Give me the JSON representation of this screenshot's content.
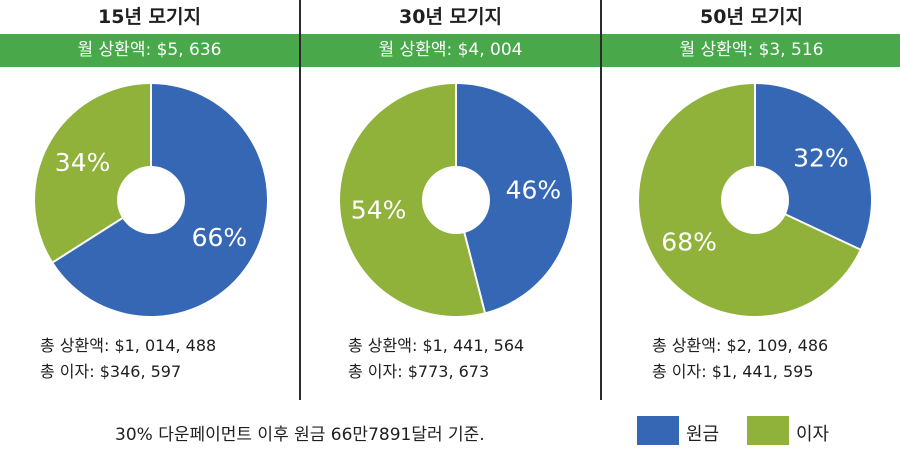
{
  "colors": {
    "principal": "#3567b5",
    "interest": "#90b23b",
    "bar": "#48a84a",
    "divider": "#2b2b2b"
  },
  "panels": [
    {
      "title": "15년 모기지",
      "monthly": "월 상환액: $5, 636",
      "total": "총 상환액: $1, 014, 488",
      "interest_total": "총 이자: $346, 597"
    },
    {
      "title": "30년 모기지",
      "monthly": "월 상환액: $4, 004",
      "total": "총 상환액: $1, 441, 564",
      "interest_total": "총 이자: $773, 673"
    },
    {
      "title": "50년 모기지",
      "monthly": "월 상환액: $3, 516",
      "total": "총 상환액: $2, 109, 486",
      "interest_total": "총 이자: $1, 441, 595"
    }
  ],
  "footnote": "30% 다운페이먼트 이후 원금 66만7891달러 기준.",
  "legend": {
    "principal": "원금",
    "interest": "이자"
  },
  "chart_data": [
    {
      "type": "pie",
      "title": "15년 모기지",
      "categories": [
        "원금",
        "이자"
      ],
      "values": [
        66,
        34
      ],
      "labels": [
        "66%",
        "34%"
      ]
    },
    {
      "type": "pie",
      "title": "30년 모기지",
      "categories": [
        "원금",
        "이자"
      ],
      "values": [
        46,
        54
      ],
      "labels": [
        "46%",
        "54%"
      ]
    },
    {
      "type": "pie",
      "title": "50년 모기지",
      "categories": [
        "원금",
        "이자"
      ],
      "values": [
        32,
        68
      ],
      "labels": [
        "32%",
        "68%"
      ]
    }
  ]
}
